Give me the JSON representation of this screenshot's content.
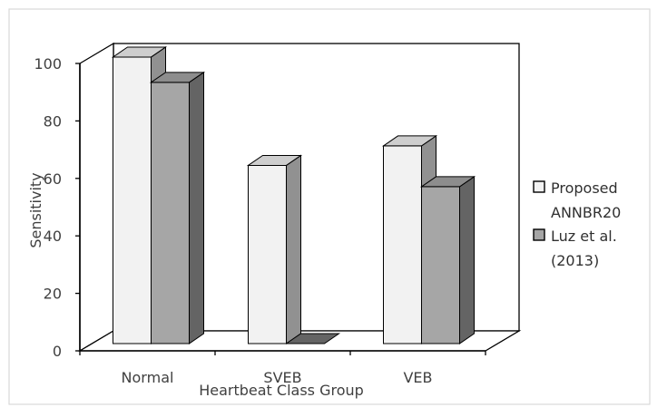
{
  "chart_data": {
    "type": "bar",
    "style": "3d-clustered-column",
    "categories": [
      "Normal",
      "SVEB",
      "VEB"
    ],
    "series": [
      {
        "name": "Proposed ANNBR20",
        "values": [
          99.7,
          62,
          68.8
        ],
        "color": "#f2f2f2"
      },
      {
        "name": "Luz et al. (2013)",
        "values": [
          90.9,
          0,
          54.6
        ],
        "color": "#a6a6a6"
      }
    ],
    "xlabel": "Heartbeat Class Group",
    "ylabel": "Sensitivity",
    "ylim": [
      0,
      100
    ],
    "yticks": [
      "0",
      "20",
      "40",
      "60",
      "80",
      "100"
    ],
    "grid": false,
    "legend": {
      "placement": "right",
      "entries": [
        {
          "lines": [
            "Proposed",
            "ANNBR20"
          ]
        },
        {
          "lines": [
            "Luz et al.",
            "(2013)"
          ]
        }
      ]
    },
    "colors": {
      "frame": "#d9d9d9",
      "axis": "#000000",
      "bar_edge": "#000000"
    }
  }
}
